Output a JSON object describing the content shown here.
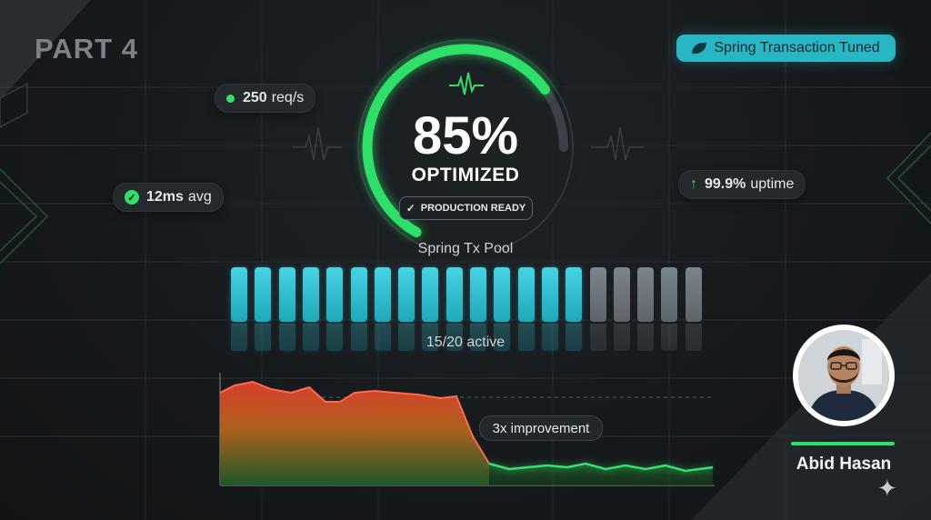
{
  "part_title": "PART 4",
  "badge": {
    "label": "Spring Transaction Tuned",
    "icon": "spring-leaf-icon",
    "color": "#28b6c4"
  },
  "gauge": {
    "percent": 85,
    "percent_text": "85%",
    "label": "OPTIMIZED",
    "status": "PRODUCTION READY",
    "color": "#2ee06a"
  },
  "metrics": {
    "throughput": {
      "value": "250",
      "unit": "req/s"
    },
    "latency": {
      "value": "12ms",
      "unit": "avg"
    },
    "uptime": {
      "value": "99.9%",
      "unit": "uptime"
    }
  },
  "pool": {
    "label": "Spring Tx Pool",
    "active": 15,
    "total": 20,
    "count_text": "15/20 active",
    "active_color": "#35c4d6",
    "idle_color": "#6b7379"
  },
  "chart": {
    "annotation": "3x improvement"
  },
  "presenter": {
    "name": "Abid Hasan"
  }
}
